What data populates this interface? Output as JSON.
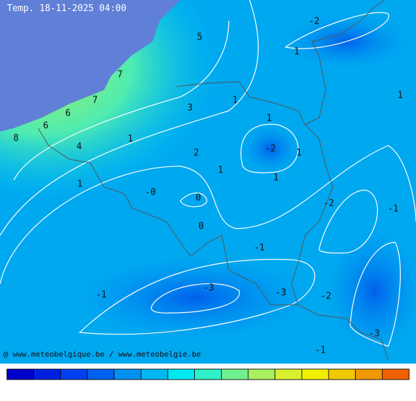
{
  "header": {
    "title": "Temp. 18-11-2025 04:00"
  },
  "contour_labels": [
    "-2",
    "5",
    "1",
    "7",
    "1",
    "7",
    "1",
    "3",
    "6",
    "1",
    "6",
    "8",
    "1",
    "4",
    "-2",
    "1",
    "2",
    "1",
    "1",
    "1",
    "-0",
    "0",
    "-2",
    "-1",
    "0",
    "-1",
    "-3",
    "-3",
    "-1",
    "-2",
    "-3",
    "-1"
  ],
  "credit": "@ www.meteobelgique.be / www.meteobelgie.be",
  "colorbar": {
    "colors": [
      "#0000c8",
      "#0020e0",
      "#0040f0",
      "#0060f0",
      "#0090f0",
      "#00b8f0",
      "#00e8f0",
      "#30f0c8",
      "#70f090",
      "#a8f060",
      "#d8f030",
      "#f0f000",
      "#f0c800",
      "#f09800",
      "#f06000"
    ]
  }
}
